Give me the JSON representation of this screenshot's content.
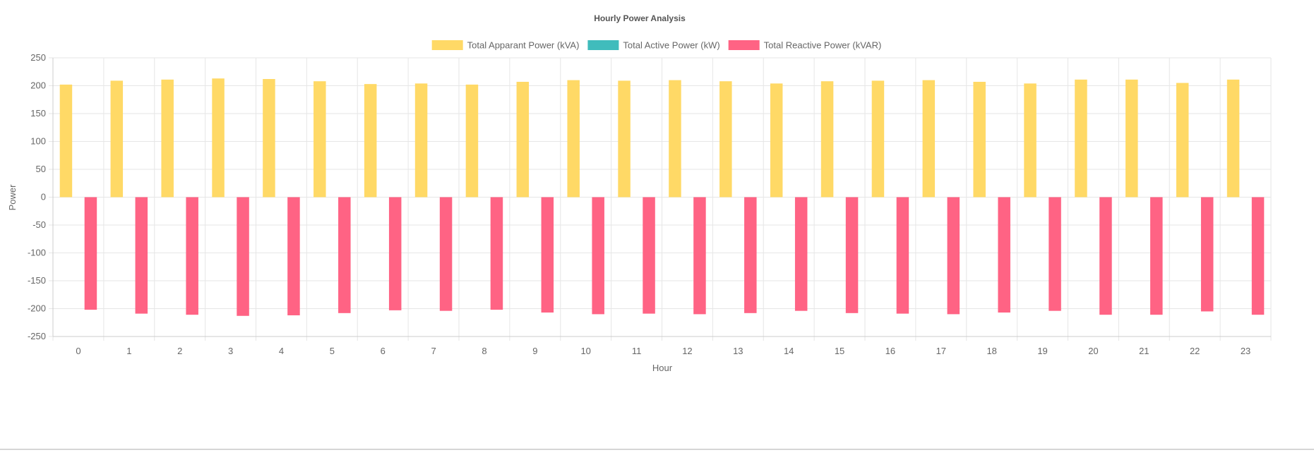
{
  "chart_data": {
    "type": "bar",
    "title": "Hourly Power Analysis",
    "xlabel": "Hour",
    "ylabel": "Power",
    "ylim": [
      -250,
      250
    ],
    "yticks": [
      250,
      200,
      150,
      100,
      50,
      0,
      -50,
      -100,
      -150,
      -200,
      -250
    ],
    "grid": true,
    "legend_position": "top-center",
    "categories": [
      "0",
      "1",
      "2",
      "3",
      "4",
      "5",
      "6",
      "7",
      "8",
      "9",
      "10",
      "11",
      "12",
      "13",
      "14",
      "15",
      "16",
      "17",
      "18",
      "19",
      "20",
      "21",
      "22",
      "23"
    ],
    "series": [
      {
        "name": "Total Apparant Power (kVA)",
        "color": "#ffd966",
        "values": [
          202,
          209,
          211,
          213,
          212,
          208,
          203,
          204,
          202,
          207,
          210,
          209,
          210,
          208,
          204,
          208,
          209,
          210,
          207,
          204,
          211,
          211,
          205,
          211
        ]
      },
      {
        "name": "Total Active Power (kW)",
        "color": "#40bcbc",
        "values": [
          0,
          0,
          0,
          0,
          0,
          0,
          0,
          0,
          0,
          0,
          0,
          0,
          0,
          0,
          0,
          0,
          0,
          0,
          0,
          0,
          0,
          0,
          0,
          0
        ]
      },
      {
        "name": "Total Reactive Power (kVAR)",
        "color": "#ff6384",
        "values": [
          -202,
          -209,
          -211,
          -213,
          -212,
          -208,
          -203,
          -204,
          -202,
          -207,
          -210,
          -209,
          -210,
          -208,
          -204,
          -208,
          -209,
          -210,
          -207,
          -204,
          -211,
          -211,
          -205,
          -211
        ]
      }
    ]
  }
}
